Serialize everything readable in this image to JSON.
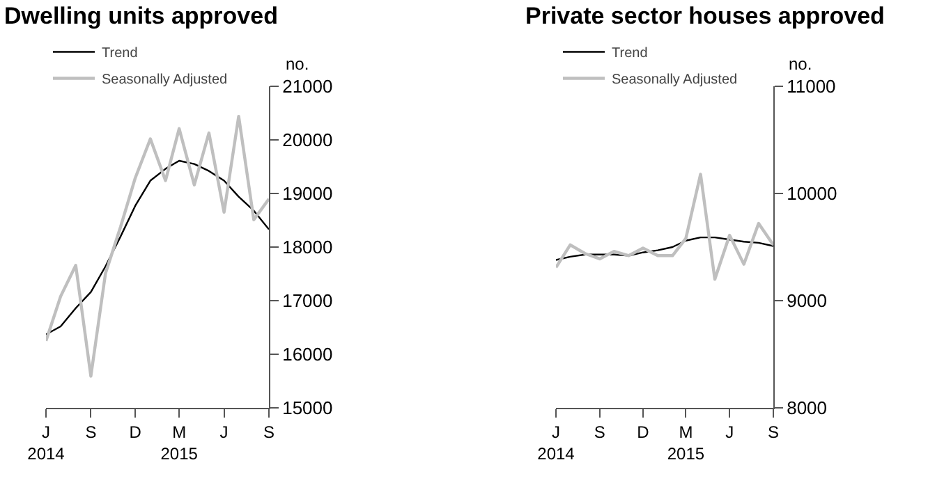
{
  "chart_data": [
    {
      "type": "line",
      "title": "Dwelling units approved",
      "ylabel": "no.",
      "x": [
        "2014-06",
        "2014-07",
        "2014-08",
        "2014-09",
        "2014-10",
        "2014-11",
        "2014-12",
        "2015-01",
        "2015-02",
        "2015-03",
        "2015-04",
        "2015-05",
        "2015-06",
        "2015-07",
        "2015-08",
        "2015-09"
      ],
      "series": [
        {
          "name": "Trend",
          "color": "#000000",
          "values": [
            16370,
            16520,
            16860,
            17160,
            17640,
            18200,
            18770,
            19240,
            19460,
            19610,
            19550,
            19420,
            19240,
            18940,
            18680,
            18330
          ]
        },
        {
          "name": "Seasonally Adjusted",
          "color": "#bfbfbf",
          "values": [
            16250,
            17080,
            17660,
            15590,
            17510,
            18380,
            19290,
            20020,
            19240,
            20210,
            19160,
            20130,
            18650,
            20440,
            18510,
            18900
          ]
        }
      ],
      "xlim": [
        "2014-06",
        "2015-09"
      ],
      "xticks": [
        {
          "value": "2014-06",
          "label": "J\n2014"
        },
        {
          "value": "2014-09",
          "label": "S"
        },
        {
          "value": "2014-12",
          "label": "D"
        },
        {
          "value": "2015-03",
          "label": "M\n2015"
        },
        {
          "value": "2015-06",
          "label": "J"
        },
        {
          "value": "2015-09",
          "label": "S"
        }
      ],
      "ylim": [
        15000,
        21000
      ],
      "yticks": [
        15000,
        16000,
        17000,
        18000,
        19000,
        20000,
        21000
      ],
      "grid": false,
      "legend": "top left",
      "marker": "none",
      "line_style": "solid"
    },
    {
      "type": "line",
      "title": "Private sector houses approved",
      "ylabel": "no.",
      "x": [
        "2014-06",
        "2014-07",
        "2014-08",
        "2014-09",
        "2014-10",
        "2014-11",
        "2014-12",
        "2015-01",
        "2015-02",
        "2015-03",
        "2015-04",
        "2015-05",
        "2015-06",
        "2015-07",
        "2015-08",
        "2015-09"
      ],
      "series": [
        {
          "name": "Trend",
          "color": "#000000",
          "values": [
            9380,
            9410,
            9430,
            9430,
            9430,
            9420,
            9450,
            9470,
            9500,
            9560,
            9590,
            9590,
            9570,
            9550,
            9540,
            9510
          ]
        },
        {
          "name": "Seasonally Adjusted",
          "color": "#bfbfbf",
          "values": [
            9310,
            9520,
            9440,
            9390,
            9460,
            9420,
            9490,
            9420,
            9420,
            9580,
            10180,
            9200,
            9610,
            9340,
            9720,
            9520
          ]
        }
      ],
      "xlim": [
        "2014-06",
        "2015-09"
      ],
      "xticks": [
        {
          "value": "2014-06",
          "label": "J\n2014"
        },
        {
          "value": "2014-09",
          "label": "S"
        },
        {
          "value": "2014-12",
          "label": "D"
        },
        {
          "value": "2015-03",
          "label": "M\n2015"
        },
        {
          "value": "2015-06",
          "label": "J"
        },
        {
          "value": "2015-09",
          "label": "S"
        }
      ],
      "ylim": [
        8000,
        11000
      ],
      "yticks": [
        8000,
        9000,
        10000,
        11000
      ],
      "grid": false,
      "legend": "top left",
      "marker": "none",
      "line_style": "solid"
    }
  ]
}
